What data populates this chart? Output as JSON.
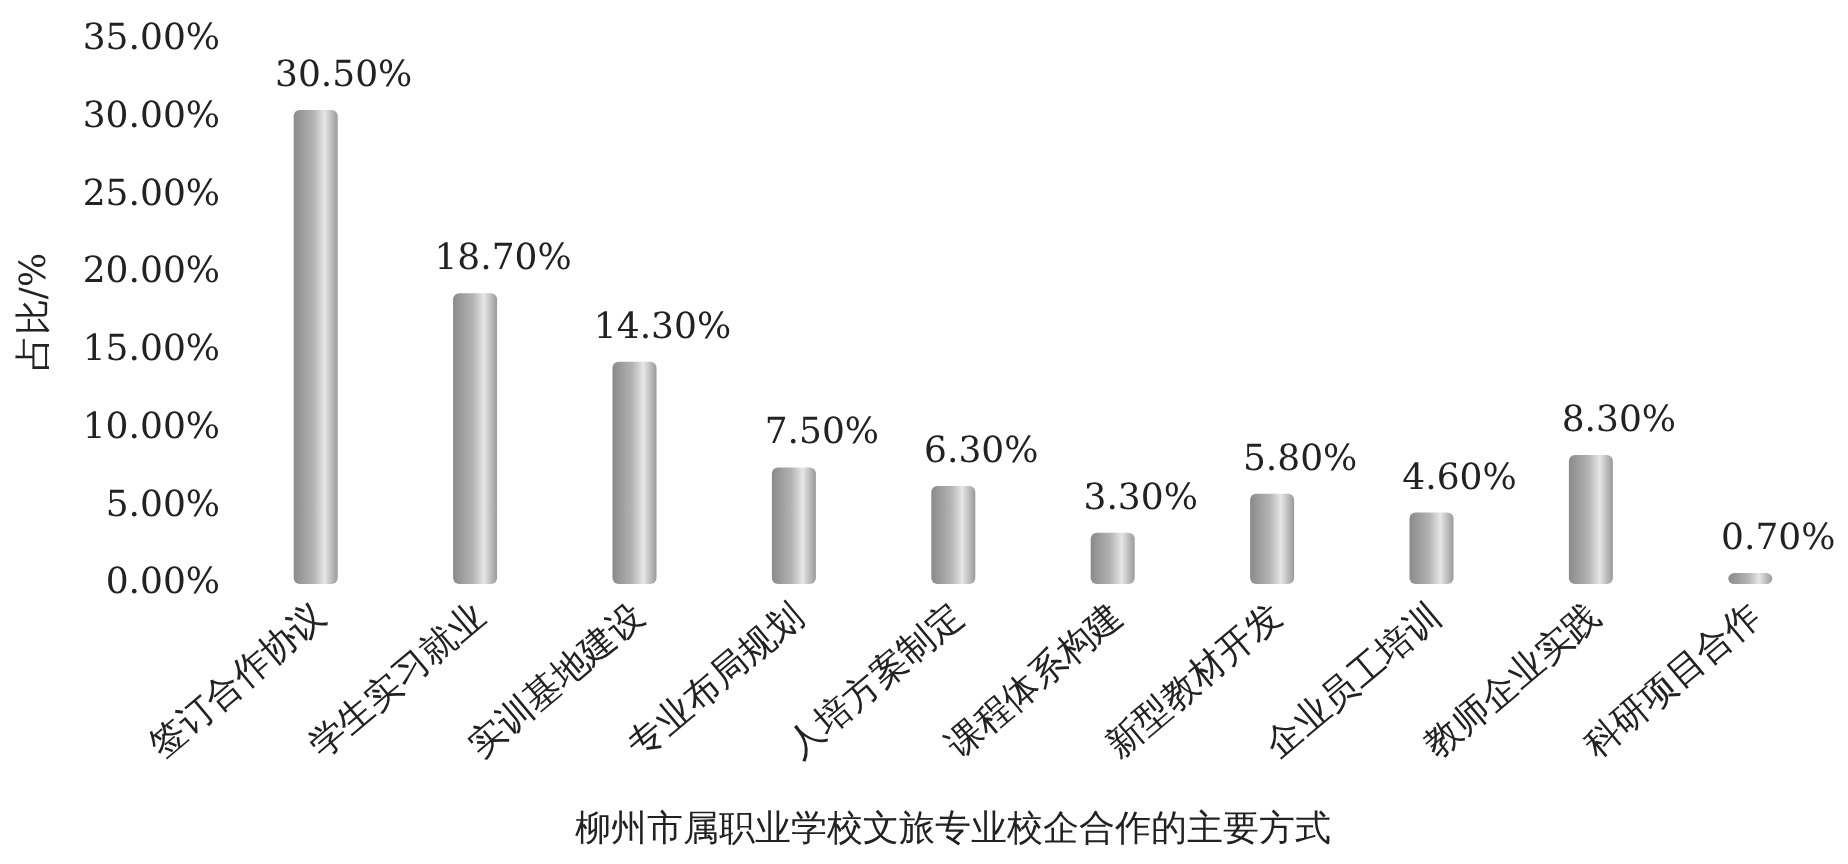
{
  "chart_data": {
    "type": "bar",
    "xlabel": "柳州市属职业学校文旅专业校企合作的主要方式",
    "ylabel": "占比/%",
    "categories": [
      "签订合作协议",
      "学生实习就业",
      "实训基地建设",
      "专业布局规划",
      "人培方案制定",
      "课程体系构建",
      "新型教材开发",
      "企业员工培训",
      "教师企业实践",
      "科研项目合作"
    ],
    "values": [
      30.5,
      18.7,
      14.3,
      7.5,
      6.3,
      3.3,
      5.8,
      4.6,
      8.3,
      0.7
    ],
    "value_labels": [
      "30.50%",
      "18.70%",
      "14.30%",
      "7.50%",
      "6.30%",
      "3.30%",
      "5.80%",
      "4.60%",
      "8.30%",
      "0.70%"
    ],
    "color": "#b4b4b4",
    "ylim": [
      0,
      35
    ],
    "yticks": [
      {
        "value": 0,
        "label": "0.00%"
      },
      {
        "value": 5,
        "label": "5.00%"
      },
      {
        "value": 10,
        "label": "10.00%"
      },
      {
        "value": 15,
        "label": "15.00%"
      },
      {
        "value": 20,
        "label": "20.00%"
      },
      {
        "value": 25,
        "label": "25.00%"
      },
      {
        "value": 30,
        "label": "30.00%"
      },
      {
        "value": 35,
        "label": "35.00%"
      }
    ]
  }
}
